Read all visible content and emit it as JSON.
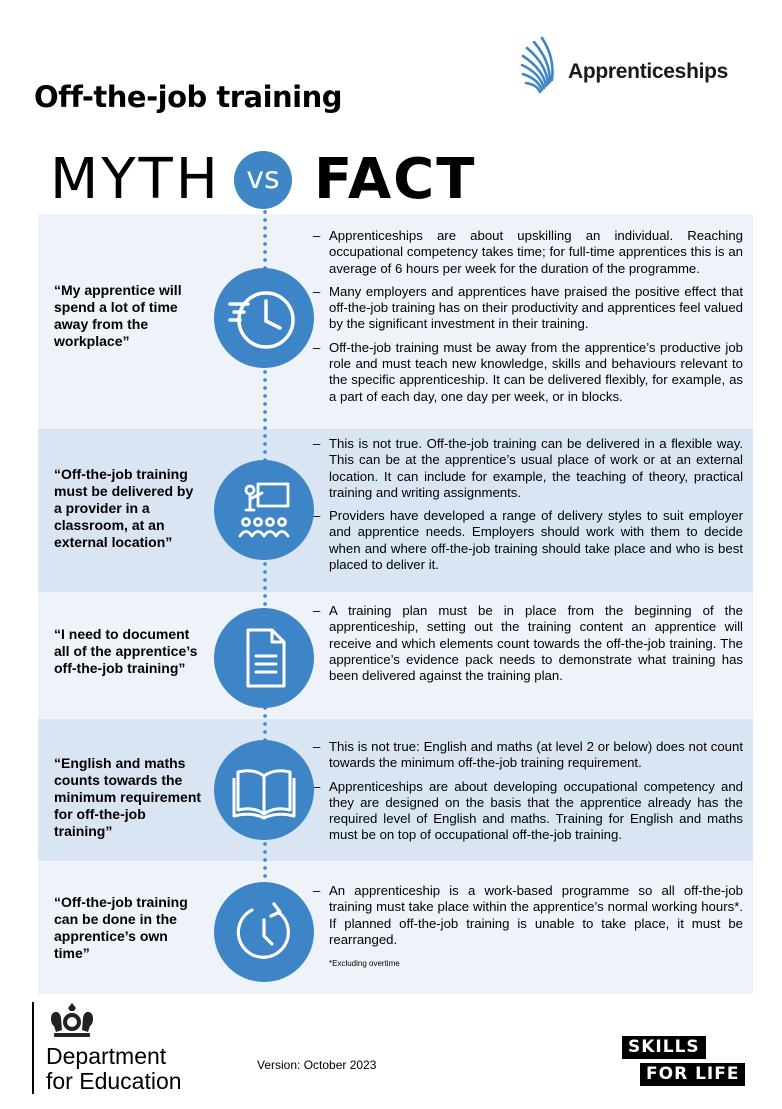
{
  "page_title": "Off-the-job training",
  "logo": {
    "text": "Apprenticeships"
  },
  "heading": {
    "myth": "MYTH",
    "vs": "vs",
    "fact": "FACT"
  },
  "rows": [
    {
      "myth": "“My apprentice will spend a lot of time away from the workplace”",
      "icon": "clock-icon",
      "facts": [
        "Apprenticeships are about upskilling an individual. Reaching occupational competency takes time; for full-time apprentices this is an average of 6 hours per week for the duration of the programme.",
        "Many employers and apprentices have praised the positive effect that off-the-job training has on their productivity and apprentices feel valued by the significant investment in their training.",
        "Off-the-job training must be away from the apprentice’s productive job role and must teach new knowledge, skills and behaviours relevant to the specific apprenticeship. It can be delivered flexibly, for example, as a part of each day, one day per week, or in blocks."
      ]
    },
    {
      "myth": "“Off-the-job training must be delivered by a provider in a classroom, at an external location”",
      "icon": "classroom-icon",
      "facts": [
        "This is not true. Off-the-job training can be delivered in a flexible way. This can be at the apprentice’s usual place of work or at an external location. It can include for example, the teaching of theory, practical training and writing assignments.",
        "Providers have developed a range of delivery styles to suit employer and apprentice needs. Employers should work with them to decide when and where off-the-job training should take place and who is best placed to deliver it."
      ]
    },
    {
      "myth": "“I need to document all of the apprentice’s off-the-job training”",
      "icon": "document-icon",
      "facts": [
        "A training plan must be in place from the beginning of the apprenticeship, setting out the training content an apprentice will receive and which elements count towards the off-the-job training. The apprentice’s evidence pack needs to demonstrate what training has been delivered against the training plan."
      ]
    },
    {
      "myth": "“English and maths counts towards the minimum requirement for off-the-job training”",
      "icon": "book-icon",
      "facts": [
        "This is not true: English and maths (at level 2 or below) does not count towards the minimum off-the-job training requirement.",
        "Apprenticeships are about developing occupational competency and they are designed on the basis that the apprentice already has the required level of English and maths. Training for English and maths must be on top of occupational off-the-job training."
      ]
    },
    {
      "myth": "“Off-the-job training can be done in the apprentice’s own time”",
      "icon": "timer-icon",
      "facts": [
        "An apprenticeship is a work-based programme so all off-the-job training must take place within the apprentice’s normal working hours*. If planned off-the-job training is unable to take place, it must be rearranged."
      ],
      "footnote": "*Excluding overtime"
    }
  ],
  "footer": {
    "department_line1": "Department",
    "department_line2": "for Education",
    "version": "Version: October 2023",
    "skills_line1": "SKILLS",
    "skills_line2": "FOR LIFE"
  },
  "colors": {
    "accent": "#3d85c6",
    "row_dark": "#d9e5f2",
    "row_light": "#eef3f9"
  }
}
